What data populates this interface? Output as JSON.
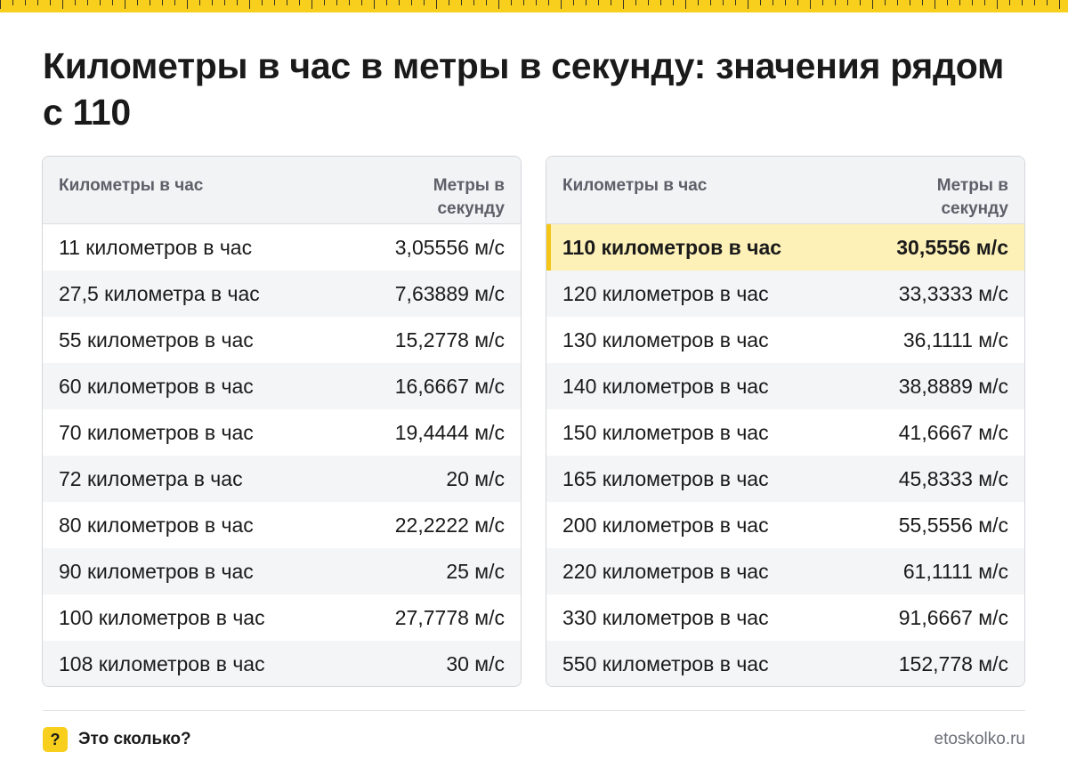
{
  "title": "Километры в час в метры в секунду: значения рядом с 110",
  "columns": {
    "from": "Километры в час",
    "to": "Метры в секунду"
  },
  "left_table": [
    {
      "from": "11 километров в час",
      "to": "3,05556 м/с"
    },
    {
      "from": "27,5 километра в час",
      "to": "7,63889 м/с"
    },
    {
      "from": "55 километров в час",
      "to": "15,2778 м/с"
    },
    {
      "from": "60 километров в час",
      "to": "16,6667 м/с"
    },
    {
      "from": "70 километров в час",
      "to": "19,4444 м/с"
    },
    {
      "from": "72 километра в час",
      "to": "20 м/с"
    },
    {
      "from": "80 километров в час",
      "to": "22,2222 м/с"
    },
    {
      "from": "90 километров в час",
      "to": "25 м/с"
    },
    {
      "from": "100 километров в час",
      "to": "27,7778 м/с"
    },
    {
      "from": "108 километров в час",
      "to": "30 м/с"
    }
  ],
  "right_table": [
    {
      "from": "110 километров в час",
      "to": "30,5556 м/с",
      "highlighted": true
    },
    {
      "from": "120 километров в час",
      "to": "33,3333 м/с"
    },
    {
      "from": "130 километров в час",
      "to": "36,1111 м/с"
    },
    {
      "from": "140 километров в час",
      "to": "38,8889 м/с"
    },
    {
      "from": "150 километров в час",
      "to": "41,6667 м/с"
    },
    {
      "from": "165 километров в час",
      "to": "45,8333 м/с"
    },
    {
      "from": "200 километров в час",
      "to": "55,5556 м/с"
    },
    {
      "from": "220 километров в час",
      "to": "61,1111 м/с"
    },
    {
      "from": "330 километров в час",
      "to": "91,6667 м/с"
    },
    {
      "from": "550 километров в час",
      "to": "152,778 м/с"
    }
  ],
  "footer": {
    "badge": "?",
    "brand": "Это сколько?",
    "site": "etoskolko.ru"
  },
  "colors": {
    "accent": "#f7cf1c",
    "highlight_row": "#fdf1b8",
    "header_bg": "#f2f3f5",
    "stripe": "#f4f5f7"
  }
}
